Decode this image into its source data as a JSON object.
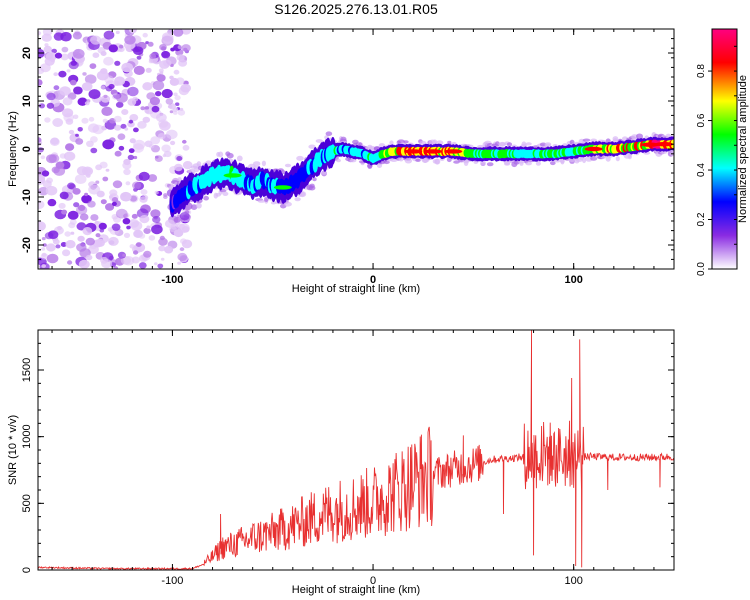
{
  "title": "S126.2025.276.13.01.R05",
  "chart_data": [
    {
      "type": "heatmap",
      "title": "S126.2025.276.13.01.R05",
      "xlabel": "Height of straight line (km)",
      "ylabel": "Frequency (Hz)",
      "xlim": [
        -167,
        150
      ],
      "ylim": [
        -25,
        25
      ],
      "x_ticks": [
        -100,
        0,
        100
      ],
      "x_tick_labels": [
        "-100",
        "0",
        "100"
      ],
      "y_ticks": [
        -20,
        -10,
        0,
        10,
        20
      ],
      "y_tick_labels": [
        "-20",
        "-10",
        "0",
        "10",
        "20"
      ],
      "colorbar": {
        "label": "Normalized spectral amplitude",
        "range": [
          0,
          0.97
        ],
        "ticks": [
          0.0,
          0.2,
          0.4,
          0.6,
          0.8
        ],
        "tick_labels": [
          "0.0",
          "0.2",
          "0.4",
          "0.6",
          "0.8"
        ],
        "colors": [
          "#ffffff",
          "#8a2be2",
          "#0000ff",
          "#00ffff",
          "#00ff00",
          "#ffff00",
          "#ff0000",
          "#ff0080"
        ]
      },
      "noise_region_x": [
        -167,
        -92
      ],
      "ridge": {
        "x": [
          -100,
          -95,
          -90,
          -85,
          -80,
          -75,
          -70,
          -65,
          -60,
          -55,
          -50,
          -45,
          -40,
          -35,
          -30,
          -25,
          -20,
          -15,
          -10,
          -5,
          0,
          5,
          10,
          20,
          30,
          40,
          50,
          60,
          70,
          80,
          90,
          100,
          110,
          120,
          130,
          140,
          150
        ],
        "freq": [
          -11.5,
          -9.5,
          -8,
          -7,
          -5.5,
          -5,
          -5.5,
          -6.5,
          -7.5,
          -6.5,
          -7.5,
          -8,
          -7,
          -5.5,
          -3.5,
          -1.5,
          -0.5,
          0,
          -0.5,
          -1,
          -2,
          -1,
          -0.5,
          -0.5,
          -0.5,
          -0.5,
          -1,
          -1,
          -1,
          -1,
          -1,
          -0.5,
          0,
          0,
          0.5,
          1,
          1
        ],
        "amplitude": [
          0.25,
          0.3,
          0.35,
          0.42,
          0.45,
          0.5,
          0.45,
          0.4,
          0.45,
          0.35,
          0.4,
          0.35,
          0.3,
          0.35,
          0.4,
          0.4,
          0.45,
          0.45,
          0.4,
          0.45,
          0.5,
          0.55,
          0.75,
          0.85,
          0.8,
          0.75,
          0.55,
          0.55,
          0.5,
          0.45,
          0.5,
          0.55,
          0.65,
          0.8,
          0.75,
          0.85,
          0.8
        ]
      }
    },
    {
      "type": "line",
      "xlabel": "Height of straight line (km)",
      "ylabel": "SNR (10 * v/v)",
      "xlim": [
        -167,
        150
      ],
      "ylim": [
        0,
        1800
      ],
      "x_ticks": [
        -100,
        0,
        100
      ],
      "x_tick_labels": [
        "-100",
        "0",
        "100"
      ],
      "y_ticks": [
        0,
        500,
        1000,
        1500
      ],
      "y_tick_labels": [
        "0",
        "500",
        "1000",
        "1500"
      ],
      "series": [
        {
          "name": "SNR",
          "color": "#e83030",
          "x": [
            -167,
            -150,
            -130,
            -110,
            -90,
            -85,
            -80,
            -75,
            -70,
            -60,
            -50,
            -40,
            -30,
            -20,
            -10,
            0,
            10,
            20,
            30,
            40,
            50,
            60,
            70,
            75,
            80,
            85,
            90,
            95,
            100,
            105,
            110,
            120,
            130,
            140,
            150
          ],
          "y": [
            20,
            15,
            10,
            10,
            10,
            40,
            100,
            170,
            190,
            240,
            280,
            330,
            390,
            440,
            470,
            510,
            580,
            660,
            720,
            760,
            790,
            830,
            840,
            850,
            850,
            860,
            850,
            860,
            850,
            850,
            850,
            845,
            845,
            845,
            850
          ],
          "spikes": [
            {
              "x": -76,
              "y": 420
            },
            {
              "x": 45,
              "y": 1010
            },
            {
              "x": 65,
              "y": 420
            },
            {
              "x": 79,
              "y": 1800
            },
            {
              "x": 80,
              "y": 110
            },
            {
              "x": 84,
              "y": 1080
            },
            {
              "x": 88,
              "y": 1000
            },
            {
              "x": 99,
              "y": 1440
            },
            {
              "x": 101,
              "y": 30
            },
            {
              "x": 103,
              "y": 1730
            },
            {
              "x": 104,
              "y": 20
            },
            {
              "x": 117,
              "y": 600
            },
            {
              "x": 143,
              "y": 620
            }
          ]
        }
      ]
    }
  ]
}
